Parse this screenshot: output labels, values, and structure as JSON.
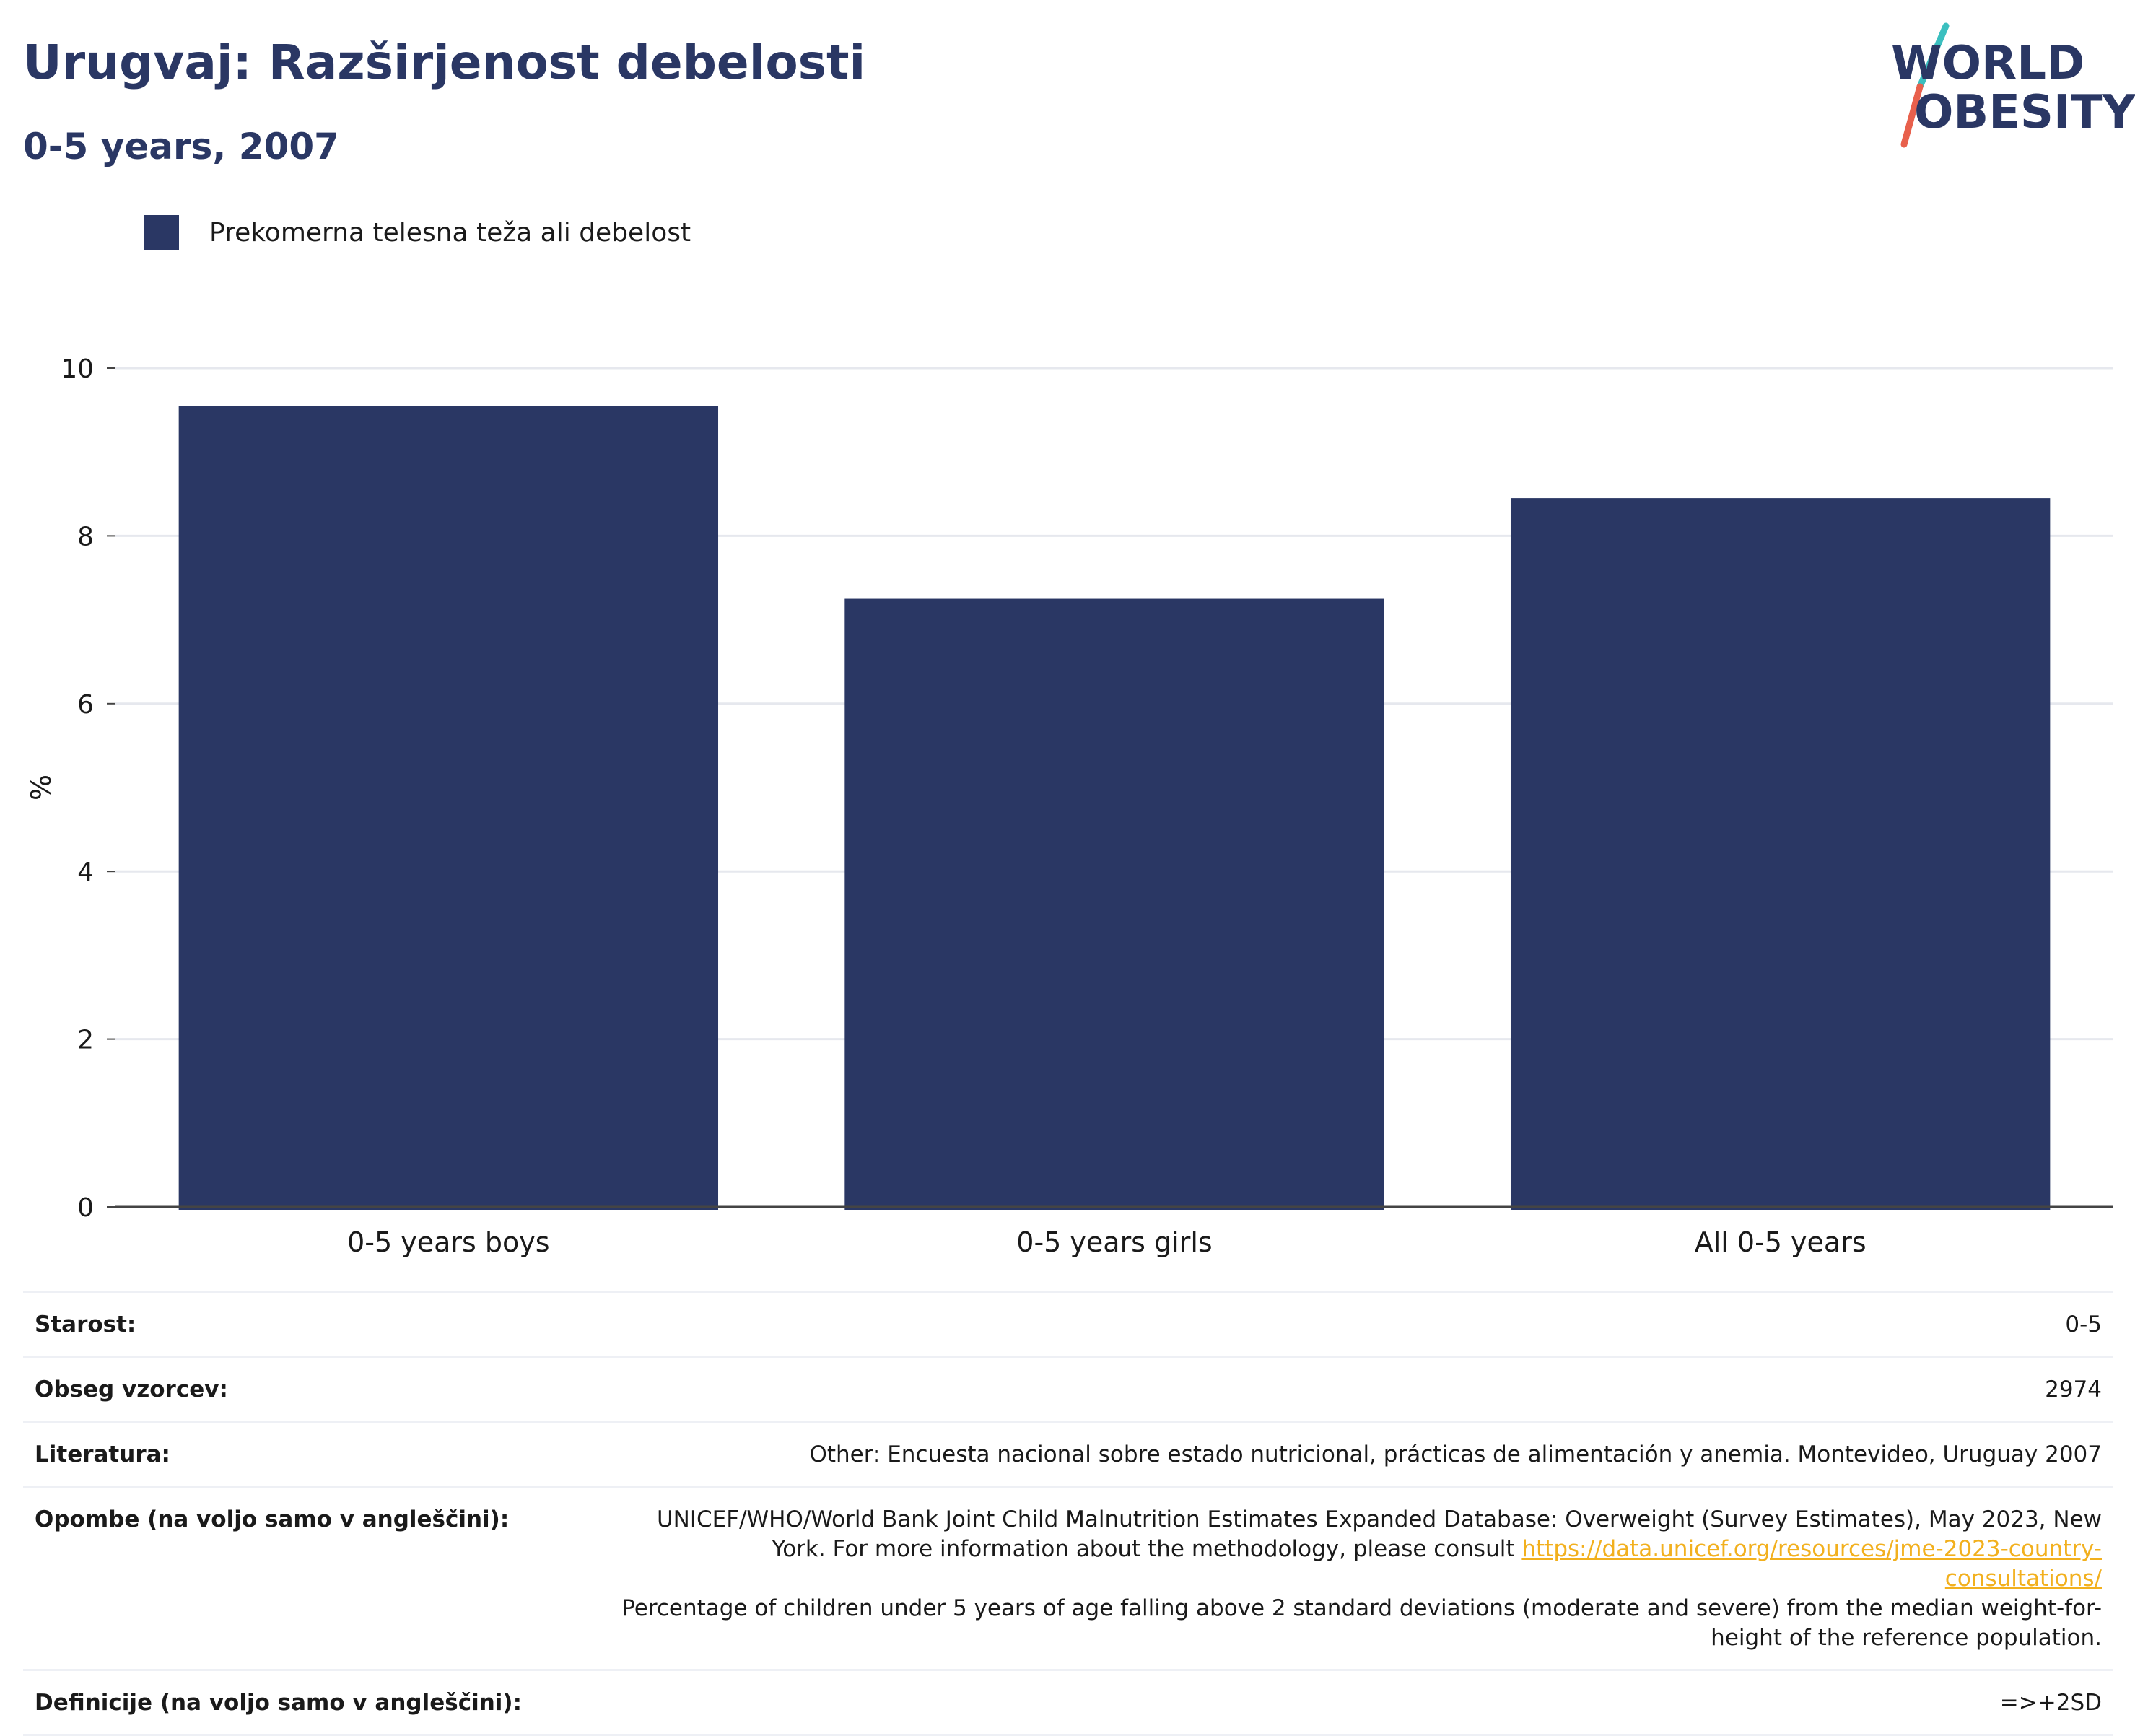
{
  "header": {
    "title": "Urugvaj: Razširjenost debelosti",
    "subtitle": "0-5 years, 2007"
  },
  "logo": {
    "line1": "WORLD",
    "line2": "OBESITY",
    "colors": {
      "text": "#2a3764",
      "accent_teal": "#3bbfbf",
      "accent_coral": "#e8604c"
    }
  },
  "legend": {
    "label": "Prekomerna telesna teža ali debelost",
    "color": "#2a3764"
  },
  "chart_data": {
    "type": "bar",
    "categories": [
      "0-5 years boys",
      "0-5 years girls",
      "All 0-5 years"
    ],
    "series": [
      {
        "name": "Prekomerna telesna teža ali debelost",
        "values": [
          9.55,
          7.25,
          8.45
        ],
        "color": "#2a3764"
      }
    ],
    "ylabel": "%",
    "ylim": [
      0,
      10
    ],
    "yticks": [
      "0",
      "2",
      "4",
      "6",
      "8",
      "10"
    ],
    "grid": true,
    "legend_position": "top-left"
  },
  "info": {
    "rows": [
      {
        "label": "Starost:",
        "value": "0-5"
      },
      {
        "label": "Obseg vzorcev:",
        "value": "2974"
      },
      {
        "label": "Literatura:",
        "value": "Other: Encuesta nacional sobre estado nutricional, prácticas de alimentación y anemia. Montevideo, Uruguay 2007"
      }
    ],
    "notes": {
      "label": "Opombe (na voljo samo v angleščini):",
      "text_before": "UNICEF/WHO/World Bank Joint Child Malnutrition Estimates Expanded Database: Overweight (Survey Estimates), May 2023, New York. For more information about the methodology, please consult ",
      "link": "https://data.unicef.org/resources/jme-2023-country-consultations/",
      "text_after": "Percentage of children under 5 years of age falling above 2 standard deviations (moderate and severe) from the median weight-for-height of the reference population."
    },
    "definitions": {
      "label": "Definicije (na voljo samo v angleščini):",
      "value": "=>+2SD"
    }
  }
}
